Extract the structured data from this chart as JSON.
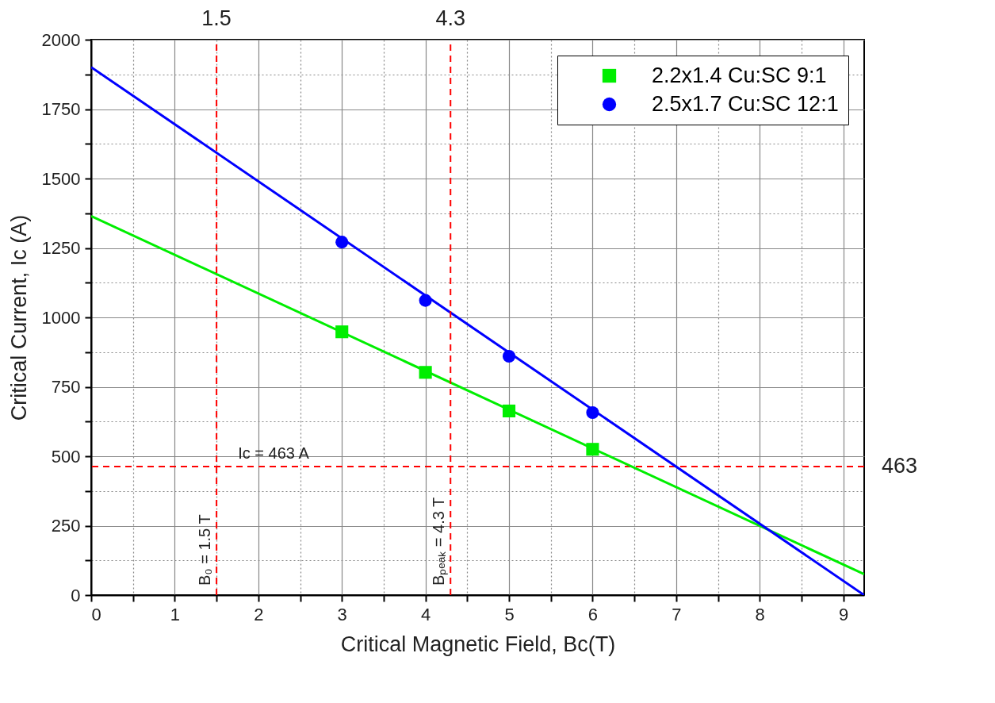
{
  "chart_data": {
    "type": "scatter",
    "xlabel": "Critical Magnetic Field, Bc(T)",
    "ylabel": "Critical Current, Ic (A)",
    "xlim": [
      0,
      9.25
    ],
    "ylim": [
      0,
      2000
    ],
    "xticks": [
      0,
      {
        "value": 0.5,
        "label": null
      },
      1,
      {
        "value": 1.5,
        "label": null
      },
      2,
      {
        "value": 2.5,
        "label": null
      },
      3,
      {
        "value": 3.5,
        "label": null
      },
      4,
      {
        "value": 4.5,
        "label": null
      },
      5,
      {
        "value": 5.5,
        "label": null
      },
      6,
      {
        "value": 6.5,
        "label": null
      },
      7,
      {
        "value": 7.5,
        "label": null
      },
      8,
      {
        "value": 8.5,
        "label": null
      },
      9
    ],
    "yticks": [
      0,
      {
        "value": 125,
        "label": null
      },
      250,
      {
        "value": 375,
        "label": null
      },
      500,
      {
        "value": 625,
        "label": null
      },
      750,
      {
        "value": 875,
        "label": null
      },
      1000,
      {
        "value": 1125,
        "label": null
      },
      1250,
      {
        "value": 1375,
        "label": null
      },
      1500,
      {
        "value": 1625,
        "label": null
      },
      1750,
      {
        "value": 1875,
        "label": null
      },
      2000
    ],
    "annotations": [
      {
        "text": "1.5",
        "x": 1.5,
        "y": 2000
      },
      {
        "text": "4.3",
        "x": 4.3,
        "y": 2000
      },
      {
        "text": "463",
        "x": 9.25,
        "y": 463
      }
    ],
    "grid": true,
    "legend": "top right",
    "series": [
      {
        "type": "line",
        "color": "#00ee00",
        "x": [
          0,
          9.25
        ],
        "values": [
          1365,
          75
        ]
      },
      {
        "type": "line",
        "color": "#0000ff",
        "x": [
          0,
          9.25
        ],
        "values": [
          1901,
          0
        ]
      },
      {
        "name": "2.2x1.4 Cu:SC 9:1",
        "marker": "square",
        "color": "#00ee00",
        "x": [
          3,
          4,
          5,
          6
        ],
        "values": [
          948,
          802,
          663,
          525
        ]
      },
      {
        "name": "2.5x1.7 Cu:SC 12:1",
        "marker": "circle",
        "color": "#0000ff",
        "x": [
          3,
          4,
          5,
          6
        ],
        "values": [
          1271,
          1061,
          860,
          657
        ]
      }
    ],
    "ref_lines": [
      {
        "axis": "x",
        "value": 1.5,
        "label": "B₀ = 1.5 T",
        "color": "#ff0000",
        "line_style": "dashed"
      },
      {
        "axis": "x",
        "value": 4.3,
        "label": "Bₚₑₐₖ = 4.3 T",
        "color": "#ff0000",
        "line_style": "dashed"
      },
      {
        "axis": "y",
        "value": 463,
        "label": "Ic = 463 A",
        "color": "#ff0000",
        "line_style": "dashed"
      }
    ]
  }
}
